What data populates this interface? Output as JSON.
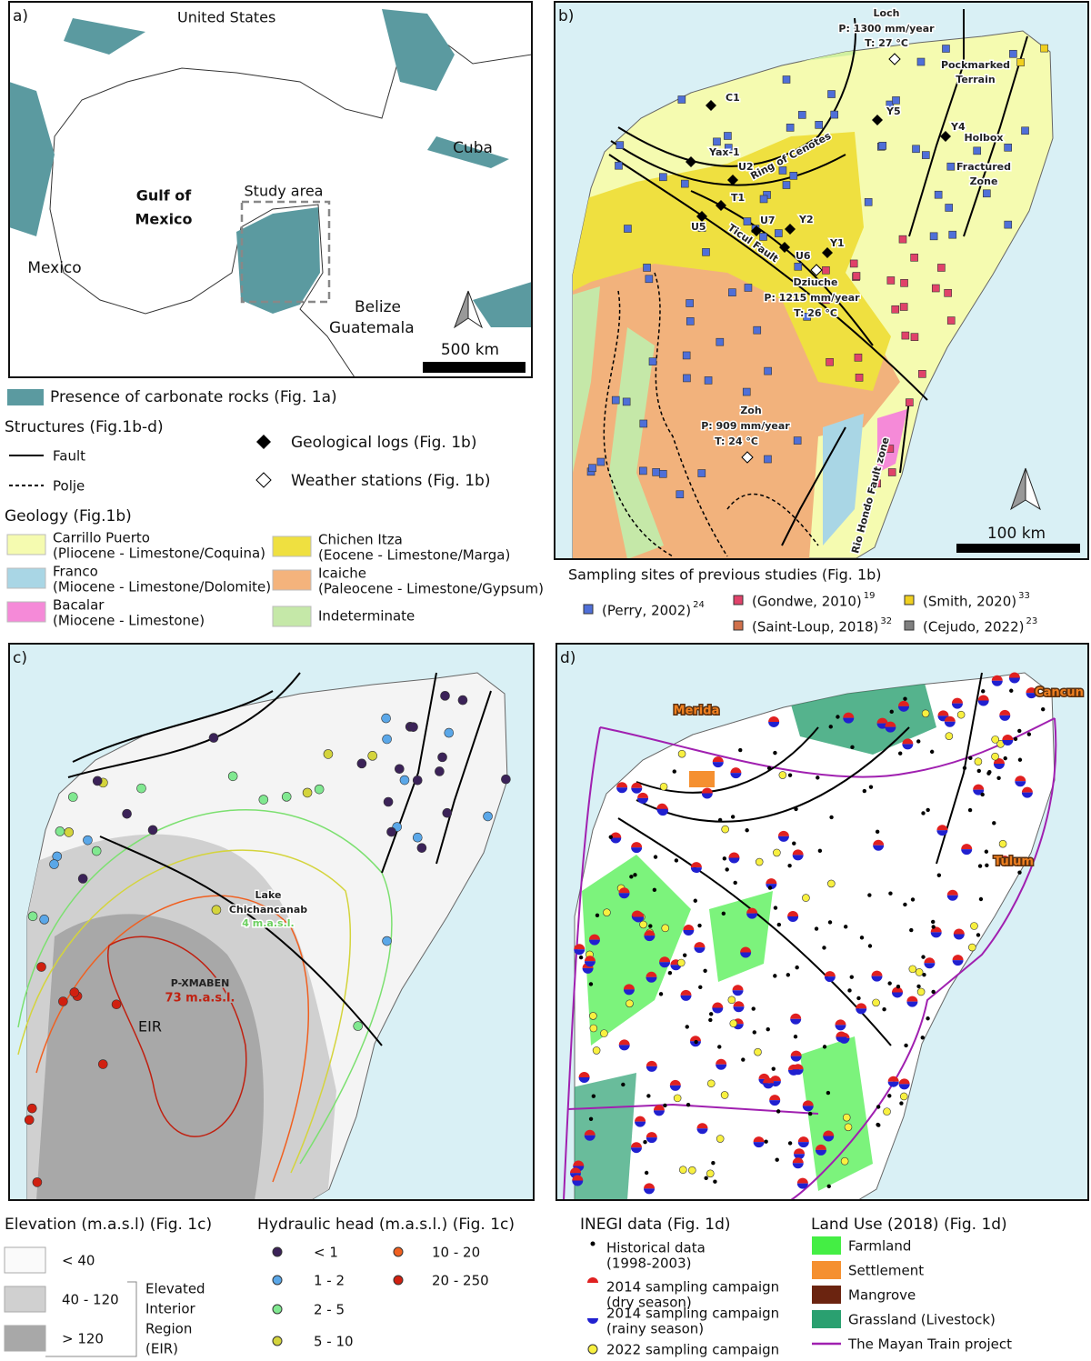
{
  "panel_a": {
    "label": "a)",
    "united_states": "United States",
    "cuba": "Cuba",
    "gulf": [
      "Gulf of",
      "Mexico"
    ],
    "study_area": "Study area",
    "mexico": "Mexico",
    "belize": "Belize",
    "guatemala": "Guatemala",
    "scale": "500 km"
  },
  "legend_a": {
    "carbonate": "Presence of carbonate rocks (Fig. 1a)",
    "structures_title": "Structures (Fig.1b-d)",
    "fault": "Fault",
    "polje": "Polje",
    "logs": "Geological logs (Fig. 1b)",
    "weather": "Weather stations (Fig. 1b)",
    "geology_title": "Geology (Fig.1b)",
    "geology": [
      {
        "name": "Carrillo Puerto",
        "period": "(Pliocene - Limestone/Coquina)"
      },
      {
        "name": "Franco",
        "period": "(Miocene - Limestone/Dolomite)"
      },
      {
        "name": "Bacalar",
        "period": "(Miocene - Limestone)"
      },
      {
        "name": "Chichen Itza",
        "period": "(Eocene - Limestone/Marga)"
      },
      {
        "name": "Icaiche",
        "period": "(Paleocene - Limestone/Gypsum)"
      },
      {
        "name": "Indeterminate"
      }
    ]
  },
  "panel_b": {
    "label": "b)",
    "loch": [
      "Loch",
      "P: 1300 mm/year",
      "T: 27 °C"
    ],
    "pockmarked": [
      "Pockmarked",
      "Terrain"
    ],
    "logs": [
      "C1",
      "Y5",
      "Y4",
      "Yax-1",
      "U2",
      "T1",
      "U5",
      "U7",
      "Y2",
      "Y1",
      "U6"
    ],
    "ring": "Ring of Cenotes",
    "ticul": "Ticul Fault",
    "holbox": [
      "Holbox",
      "Fractured",
      "Zone"
    ],
    "dziuche": [
      "Dziuche",
      "P: 1215 mm/year",
      "T: 26 °C"
    ],
    "zoh": [
      "Zoh",
      "P: 909 mm/year",
      "T: 24 °C"
    ],
    "rio_hondo": "Rio Hondo Fault zone",
    "scale": "100 km"
  },
  "legend_b": {
    "title": "Sampling sites of previous studies (Fig. 1b)",
    "studies": [
      {
        "name": "(Perry, 2002)",
        "ref": "24"
      },
      {
        "name": "(Gondwe, 2010)",
        "ref": "19"
      },
      {
        "name": "(Saint-Loup, 2018)",
        "ref": "32"
      },
      {
        "name": "(Smith, 2020)",
        "ref": "33"
      },
      {
        "name": "(Cejudo, 2022)",
        "ref": "23"
      }
    ]
  },
  "panel_c": {
    "label": "c)",
    "lake": [
      "Lake",
      "Chichancanab"
    ],
    "lake_head": "4 m.a.s.l.",
    "well": "P-XMABEN",
    "well_head": "73 m.a.s.l.",
    "eir": "EIR"
  },
  "legend_c": {
    "elevation_title": "Elevation (m.a.s.l) (Fig. 1c)",
    "elevation": [
      "< 40",
      "40 - 120",
      "> 120"
    ],
    "eir": [
      "Elevated",
      "Interior",
      "Region",
      "(EIR)"
    ],
    "head_title": "Hydraulic head (m.a.s.l.) (Fig. 1c)",
    "heads": [
      "< 1",
      "1 - 2",
      "2 - 5",
      "5 - 10",
      "10 - 20",
      "20 - 250"
    ]
  },
  "panel_d": {
    "label": "d)",
    "merida": "Merida",
    "cancun": "Cancun",
    "tulum": "Tulum"
  },
  "legend_d": {
    "inegi_title": "INEGI data (Fig. 1d)",
    "historical": [
      "Historical data",
      "(1998-2003)"
    ],
    "dry": [
      "2014 sampling campaign",
      "(dry season)"
    ],
    "rainy": [
      "2014 sampling campaign",
      "(rainy season)"
    ],
    "c2022": "2022 sampling campaign",
    "landuse_title": "Land Use (2018) (Fig. 1d)",
    "landuse": [
      "Farmland",
      "Settlement",
      "Mangrove",
      "Grassland (Livestock)",
      "The Mayan Train project"
    ]
  }
}
